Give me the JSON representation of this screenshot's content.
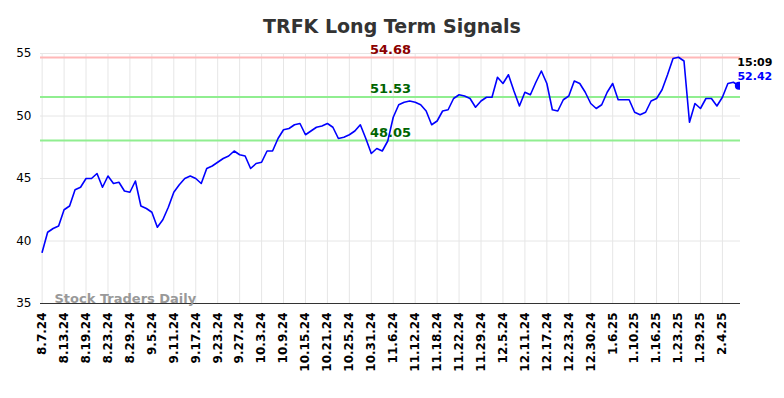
{
  "chart_data": {
    "type": "line",
    "title": "TRFK Long Term Signals",
    "watermark": "Stock Traders Daily",
    "color": "blue",
    "categories": [
      "8.7.24",
      null,
      null,
      null,
      "8.13.24",
      null,
      null,
      null,
      "8.19.24",
      null,
      null,
      null,
      "8.23.24",
      null,
      null,
      null,
      "8.29.24",
      null,
      null,
      null,
      "9.5.24",
      null,
      null,
      null,
      "9.11.24",
      null,
      null,
      null,
      "9.17.24",
      null,
      null,
      null,
      "9.23.24",
      null,
      null,
      null,
      "9.27.24",
      null,
      null,
      null,
      "10.3.24",
      null,
      null,
      null,
      "10.9.24",
      null,
      null,
      null,
      "10.15.24",
      null,
      null,
      null,
      "10.21.24",
      null,
      null,
      null,
      "10.25.24",
      null,
      null,
      null,
      "10.31.24",
      null,
      null,
      null,
      "11.6.24",
      null,
      null,
      null,
      "11.12.24",
      null,
      null,
      null,
      "11.18.24",
      null,
      null,
      null,
      "11.22.24",
      null,
      null,
      null,
      "11.29.24",
      null,
      null,
      null,
      "12.5.24",
      null,
      null,
      null,
      "12.11.24",
      null,
      null,
      null,
      "12.17.24",
      null,
      null,
      null,
      "12.23.24",
      null,
      null,
      null,
      "12.30.24",
      null,
      null,
      null,
      "1.6.25",
      null,
      null,
      null,
      "1.10.25",
      null,
      null,
      null,
      "1.16.25",
      null,
      null,
      null,
      "1.23.25",
      null,
      null,
      null,
      "1.29.25",
      null,
      null,
      null,
      "2.4.25",
      null,
      null,
      null
    ],
    "values": [
      39.1,
      40.7,
      41.0,
      41.2,
      42.5,
      42.8,
      44.1,
      44.3,
      45.0,
      45.0,
      45.4,
      44.3,
      45.2,
      44.6,
      44.7,
      44.0,
      43.9,
      44.8,
      42.8,
      42.6,
      42.3,
      41.1,
      41.7,
      42.7,
      43.9,
      44.5,
      45.0,
      45.2,
      45.0,
      44.6,
      45.8,
      46.0,
      46.3,
      46.6,
      46.8,
      47.2,
      46.9,
      46.8,
      45.8,
      46.2,
      46.3,
      47.2,
      47.2,
      48.2,
      48.9,
      49.0,
      49.3,
      49.4,
      48.5,
      48.8,
      49.1,
      49.2,
      49.4,
      49.1,
      48.2,
      48.3,
      48.5,
      48.8,
      49.3,
      48.2,
      47.0,
      47.4,
      47.2,
      48.0,
      49.9,
      50.9,
      51.1,
      51.2,
      51.1,
      50.9,
      50.4,
      49.3,
      49.6,
      50.4,
      50.5,
      51.4,
      51.7,
      51.6,
      51.4,
      50.7,
      51.2,
      51.5,
      51.5,
      53.1,
      52.6,
      53.3,
      52.0,
      50.8,
      51.9,
      51.7,
      52.7,
      53.6,
      52.6,
      50.5,
      50.4,
      51.3,
      51.6,
      52.8,
      52.6,
      51.9,
      51.0,
      50.6,
      50.9,
      51.9,
      52.6,
      51.3,
      51.3,
      51.3,
      50.3,
      50.1,
      50.3,
      51.2,
      51.4,
      52.1,
      53.3,
      54.6,
      54.7,
      54.4,
      49.5,
      51.0,
      50.6,
      51.4,
      51.4,
      50.8,
      51.5,
      52.6,
      52.7,
      52.42
    ],
    "last_time": "15:09",
    "levels": [
      {
        "value": 54.68,
        "color": "#ffb8b8",
        "label_color": "#8b0000"
      },
      {
        "value": 51.53,
        "color": "#90ee90",
        "label_color": "#006400"
      },
      {
        "value": 48.05,
        "color": "#90ee90",
        "label_color": "#006400"
      }
    ],
    "ylim": [
      35,
      55
    ],
    "yticks": [
      35,
      40,
      45,
      50,
      55
    ],
    "grid": true
  }
}
